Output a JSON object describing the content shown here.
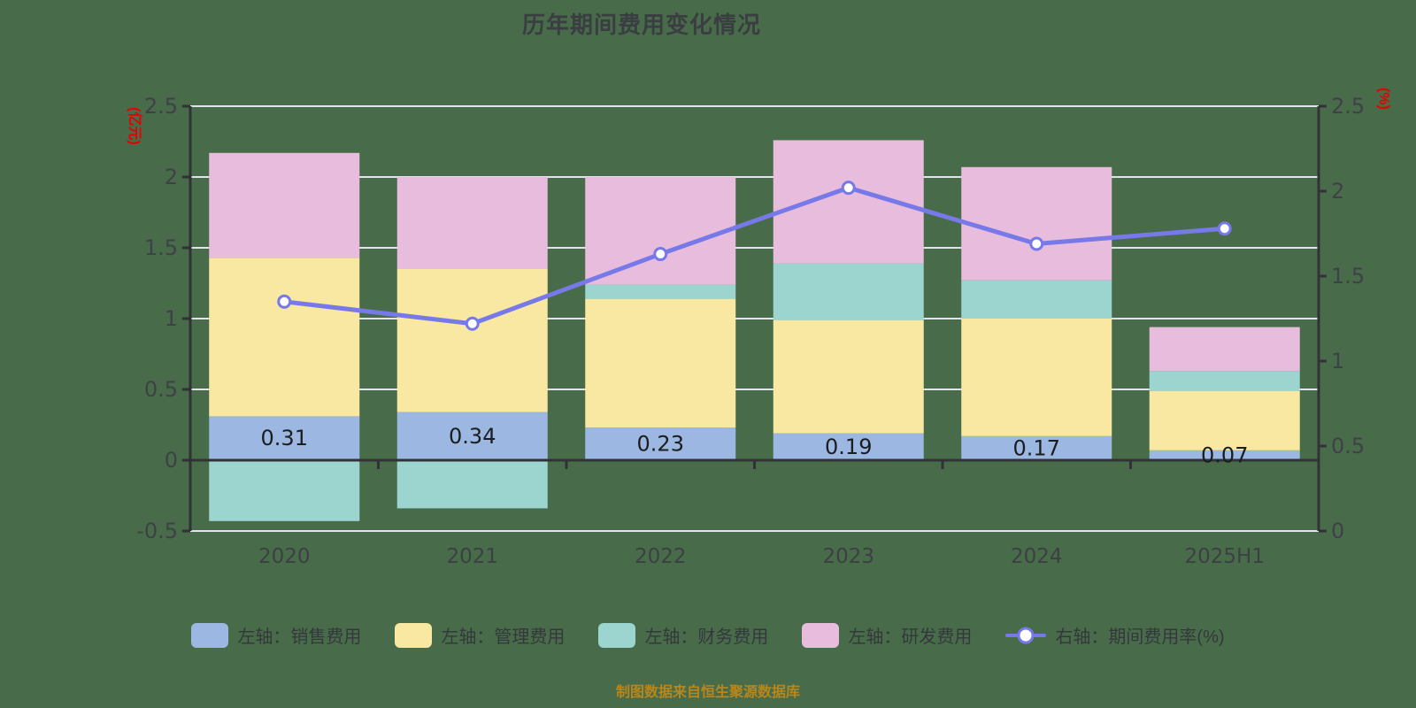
{
  "title": "历年期间费用变化情况",
  "credits": "制图数据来自恒生聚源数据库",
  "colors": {
    "background": "#486C4A",
    "title_text": "#3A3D41",
    "axis_line": "#303236",
    "tick_text": "#3E4145",
    "x_label_text": "#3C4043",
    "value_label_text": "#1B1D1F",
    "gridline": "#E2E2EA",
    "axis_unit_red": "#E60000",
    "credits_gold": "#B8861B",
    "sales": "#9CB8E2",
    "admin": "#F8E8A2",
    "finance": "#9CD5CF",
    "rd": "#E8BCDC",
    "ratio_line": "#7779E8"
  },
  "legend": {
    "items": [
      {
        "key": "sales",
        "label": "左轴：销售费用",
        "color": "#9CB8E2",
        "marker": "rect"
      },
      {
        "key": "admin",
        "label": "左轴：管理费用",
        "color": "#F8E8A2",
        "marker": "rect"
      },
      {
        "key": "finance",
        "label": "左轴：财务费用",
        "color": "#9CD5CF",
        "marker": "rect"
      },
      {
        "key": "rd",
        "label": "左轴：研发费用",
        "color": "#E8BCDC",
        "marker": "rect"
      },
      {
        "key": "ratio",
        "label": "右轴：期间费用率(%)",
        "color": "#7779E8",
        "marker": "line-dot"
      }
    ]
  },
  "chart_data": {
    "type": "bar",
    "subtype": "stacked-bars-with-right-axis-line",
    "categories": [
      "2020",
      "2021",
      "2022",
      "2023",
      "2024",
      "2025H1"
    ],
    "series": [
      {
        "name": "左轴：销售费用",
        "key": "sales",
        "type": "bar",
        "stack": "total",
        "axis": "left",
        "color": "#9CB8E2",
        "values": [
          0.31,
          0.34,
          0.23,
          0.19,
          0.17,
          0.07
        ],
        "show_labels": true
      },
      {
        "name": "左轴：管理费用",
        "key": "admin",
        "type": "bar",
        "stack": "total",
        "axis": "left",
        "color": "#F8E8A2",
        "values": [
          1.12,
          1.01,
          0.91,
          0.8,
          0.83,
          0.42
        ]
      },
      {
        "name": "左轴：财务费用",
        "key": "finance",
        "type": "bar",
        "stack": "total",
        "axis": "left",
        "color": "#9CD5CF",
        "values": [
          -0.43,
          -0.34,
          0.1,
          0.4,
          0.27,
          0.14
        ]
      },
      {
        "name": "左轴：研发费用",
        "key": "rd",
        "type": "bar",
        "stack": "total",
        "axis": "left",
        "color": "#E8BCDC",
        "values": [
          0.74,
          0.65,
          0.76,
          0.87,
          0.8,
          0.31
        ]
      },
      {
        "name": "右轴：期间费用率(%)",
        "key": "ratio",
        "type": "line",
        "axis": "right",
        "color": "#7779E8",
        "values": [
          1.35,
          1.22,
          1.63,
          2.02,
          1.69,
          1.78
        ]
      }
    ],
    "bar_value_labels": [
      "0.31",
      "0.34",
      "0.23",
      "0.19",
      "0.17",
      "0.07"
    ],
    "left_axis": {
      "name": "(亿元)",
      "min": -0.5,
      "max": 2.5,
      "ticks": [
        2.5,
        2,
        1.5,
        1,
        0.5,
        0,
        -0.5
      ]
    },
    "right_axis": {
      "name": "(%)",
      "min": 0,
      "max": 2.5,
      "ticks": [
        2.5,
        2,
        1.5,
        1,
        0.5,
        0
      ]
    },
    "grid": true,
    "legend_position": "bottom"
  }
}
